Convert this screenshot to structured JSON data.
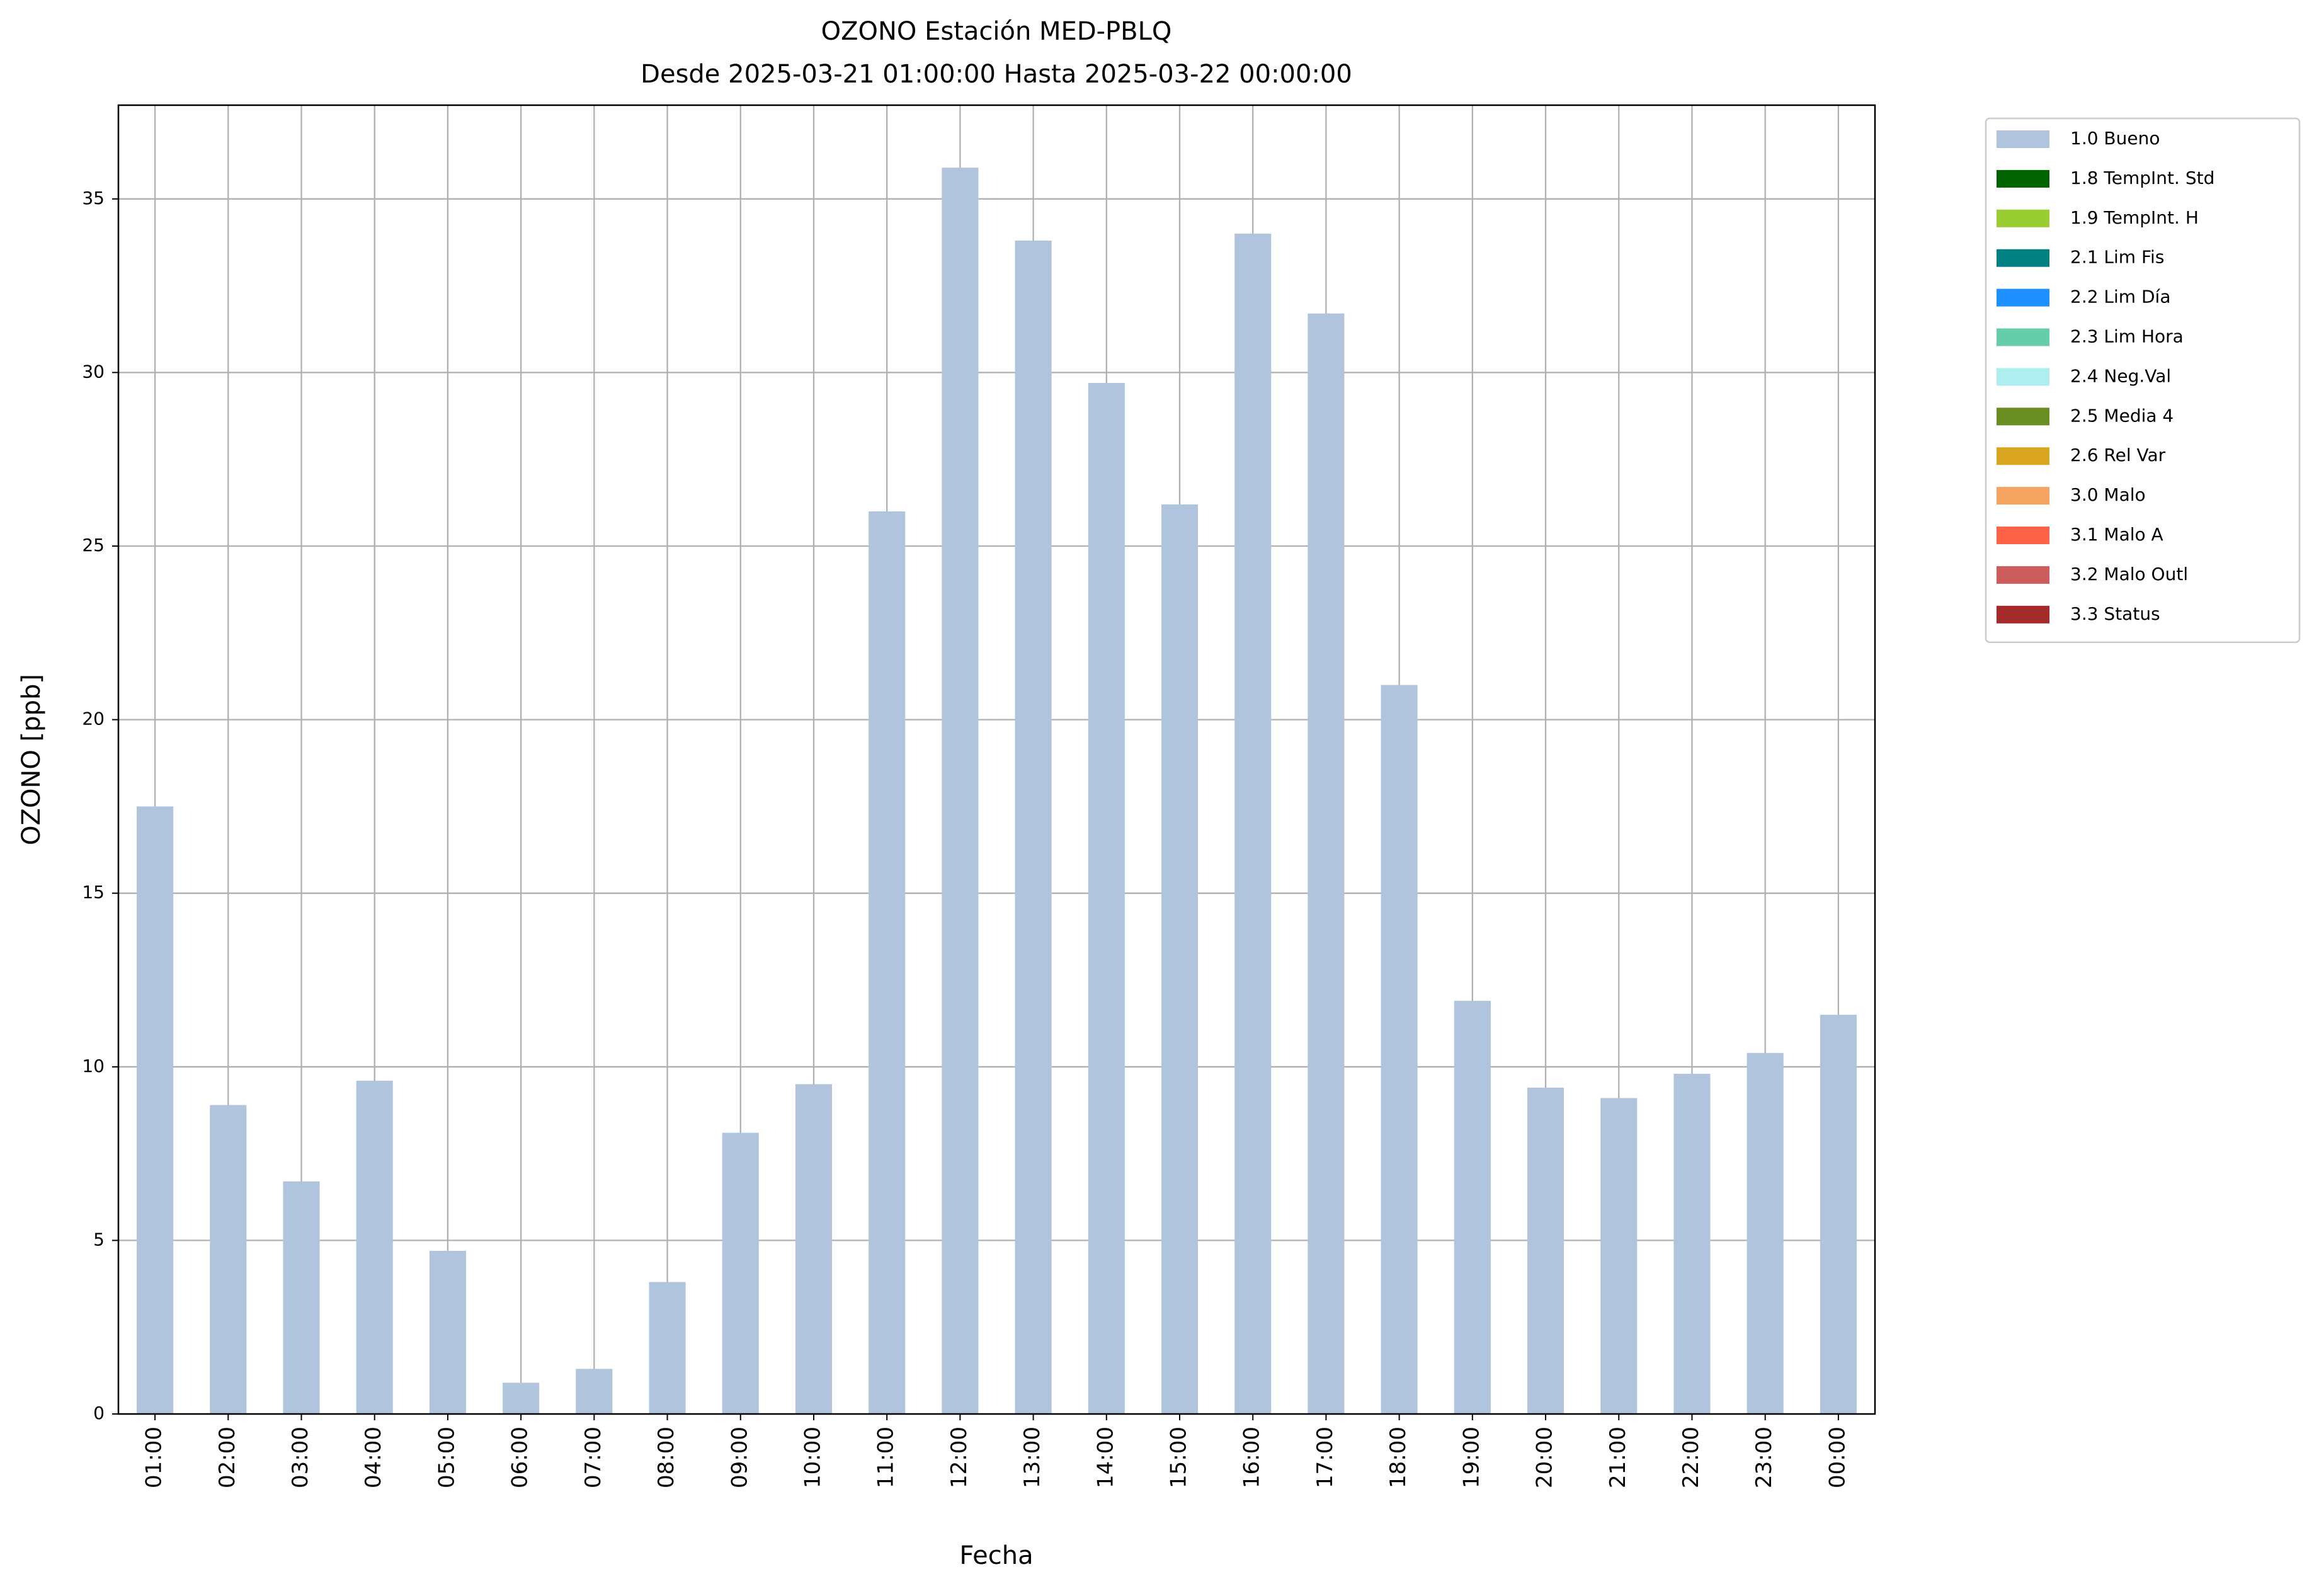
{
  "chart_data": {
    "type": "bar",
    "stacked": true,
    "title": "OZONO Estación MED-PBLQ",
    "subtitle": "Desde 2025-03-21 01:00:00 Hasta 2025-03-22 00:00:00",
    "x_label": "Fecha",
    "y_label": "OZONO [ppb]",
    "categories": [
      "01:00",
      "02:00",
      "03:00",
      "04:00",
      "05:00",
      "06:00",
      "07:00",
      "08:00",
      "09:00",
      "10:00",
      "11:00",
      "12:00",
      "13:00",
      "14:00",
      "15:00",
      "16:00",
      "17:00",
      "18:00",
      "19:00",
      "20:00",
      "21:00",
      "22:00",
      "23:00",
      "00:00"
    ],
    "series": [
      {
        "name": "1.0 Bueno",
        "color": "#b0c4de",
        "values": [
          17.5,
          8.9,
          6.7,
          9.6,
          4.7,
          0.9,
          1.3,
          3.8,
          8.1,
          9.5,
          26.0,
          35.9,
          33.8,
          29.7,
          26.2,
          34.0,
          31.7,
          21.0,
          11.9,
          9.4,
          9.1,
          9.8,
          10.4,
          11.5
        ]
      },
      {
        "name": "1.8 TempInt. Std",
        "color": "#006400",
        "values": [
          0,
          0,
          0,
          0,
          0,
          0,
          0,
          0,
          0,
          0,
          0,
          0,
          0,
          0,
          0,
          0,
          0,
          0,
          0,
          0,
          0,
          0,
          0,
          0
        ]
      },
      {
        "name": "1.9 TempInt. H",
        "color": "#9acd32",
        "values": [
          0,
          0,
          0,
          0,
          0,
          0,
          0,
          0,
          0,
          0,
          0,
          0,
          0,
          0,
          0,
          0,
          0,
          0,
          0,
          0,
          0,
          0,
          0,
          0
        ]
      },
      {
        "name": "2.1 Lim Fis",
        "color": "#008080",
        "values": [
          0,
          0,
          0,
          0,
          0,
          0,
          0,
          0,
          0,
          0,
          0,
          0,
          0,
          0,
          0,
          0,
          0,
          0,
          0,
          0,
          0,
          0,
          0,
          0
        ]
      },
      {
        "name": "2.2 Lim Día",
        "color": "#1e90ff",
        "values": [
          0,
          0,
          0,
          0,
          0,
          0,
          0,
          0,
          0,
          0,
          0,
          0,
          0,
          0,
          0,
          0,
          0,
          0,
          0,
          0,
          0,
          0,
          0,
          0
        ]
      },
      {
        "name": "2.3 Lim Hora",
        "color": "#66cdaa",
        "values": [
          0,
          0,
          0,
          0,
          0,
          0,
          0,
          0,
          0,
          0,
          0,
          0,
          0,
          0,
          0,
          0,
          0,
          0,
          0,
          0,
          0,
          0,
          0,
          0
        ]
      },
      {
        "name": "2.4 Neg.Val",
        "color": "#afeeee",
        "values": [
          0,
          0,
          0,
          0,
          0,
          0,
          0,
          0,
          0,
          0,
          0,
          0,
          0,
          0,
          0,
          0,
          0,
          0,
          0,
          0,
          0,
          0,
          0,
          0
        ]
      },
      {
        "name": "2.5 Media 4",
        "color": "#6b8e23",
        "values": [
          0,
          0,
          0,
          0,
          0,
          0,
          0,
          0,
          0,
          0,
          0,
          0,
          0,
          0,
          0,
          0,
          0,
          0,
          0,
          0,
          0,
          0,
          0,
          0
        ]
      },
      {
        "name": "2.6 Rel Var",
        "color": "#daa520",
        "values": [
          0,
          0,
          0,
          0,
          0,
          0,
          0,
          0,
          0,
          0,
          0,
          0,
          0,
          0,
          0,
          0,
          0,
          0,
          0,
          0,
          0,
          0,
          0,
          0
        ]
      },
      {
        "name": "3.0 Malo",
        "color": "#f4a460",
        "values": [
          0,
          0,
          0,
          0,
          0,
          0,
          0,
          0,
          0,
          0,
          0,
          0,
          0,
          0,
          0,
          0,
          0,
          0,
          0,
          0,
          0,
          0,
          0,
          0
        ]
      },
      {
        "name": "3.1 Malo A",
        "color": "#ff6347",
        "values": [
          0,
          0,
          0,
          0,
          0,
          0,
          0,
          0,
          0,
          0,
          0,
          0,
          0,
          0,
          0,
          0,
          0,
          0,
          0,
          0,
          0,
          0,
          0,
          0
        ]
      },
      {
        "name": "3.2 Malo Outl",
        "color": "#cd5c5c",
        "values": [
          0,
          0,
          0,
          0,
          0,
          0,
          0,
          0,
          0,
          0,
          0,
          0,
          0,
          0,
          0,
          0,
          0,
          0,
          0,
          0,
          0,
          0,
          0,
          0
        ]
      },
      {
        "name": "3.3 Status",
        "color": "#a52a2a",
        "values": [
          0,
          0,
          0,
          0,
          0,
          0,
          0,
          0,
          0,
          0,
          0,
          0,
          0,
          0,
          0,
          0,
          0,
          0,
          0,
          0,
          0,
          0,
          0,
          0
        ]
      }
    ],
    "ylim": [
      0,
      37.7
    ],
    "yticks": [
      0,
      5,
      10,
      15,
      20,
      25,
      30,
      35
    ],
    "grid": true,
    "legend": "outside-right"
  }
}
